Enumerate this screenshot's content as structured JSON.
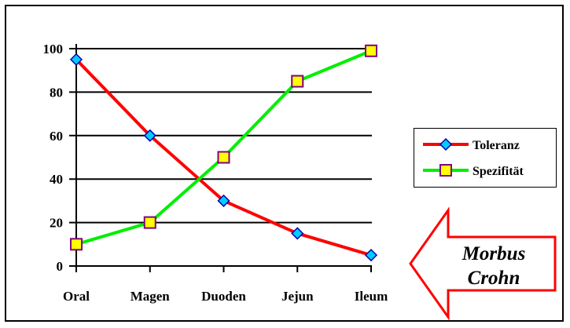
{
  "chart_data": {
    "type": "line",
    "categories": [
      "Oral",
      "Magen",
      "Duoden",
      "Jejun",
      "Ileum"
    ],
    "series": [
      {
        "name": "Toleranz",
        "values": [
          95,
          60,
          30,
          15,
          5
        ],
        "color": "#ff0000",
        "marker": "diamond",
        "marker_color": "#00ccff"
      },
      {
        "name": "Spezifität",
        "values": [
          10,
          20,
          50,
          85,
          99
        ],
        "color": "#00ee00",
        "marker": "square",
        "marker_color": "#ffff00"
      }
    ],
    "ylim": [
      0,
      100
    ],
    "yticks": [
      0,
      20,
      40,
      60,
      80,
      100
    ],
    "grid": true,
    "legend": "right",
    "annotation": {
      "line1": "Morbus",
      "line2": "Crohn",
      "color": "#ff0000"
    }
  }
}
